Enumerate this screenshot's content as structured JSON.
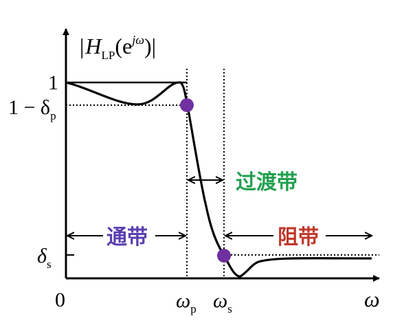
{
  "axes": {
    "y_label": {
      "prefix": "|",
      "H": "H",
      "sub": "LP",
      "open": "(e",
      "sup": "jω",
      "close": ")|"
    },
    "x_label": "ω",
    "origin": "0"
  },
  "y_ticks": {
    "one": "1",
    "one_minus_delta_p": {
      "main": "1 − δ",
      "sub": "p"
    },
    "delta_s": {
      "main": "δ",
      "sub": "s"
    }
  },
  "x_ticks": {
    "omega_p": {
      "main": "ω",
      "sub": "p"
    },
    "omega_s": {
      "main": "ω",
      "sub": "s"
    }
  },
  "regions": {
    "passband": "通带",
    "transition": "过渡带",
    "stopband": "阻带"
  },
  "colors": {
    "curve": "#000000",
    "marker": "#7030a0",
    "passband_text": "#5b3eb0",
    "transition_text": "#22a050",
    "stopband_text": "#c0392b"
  }
}
